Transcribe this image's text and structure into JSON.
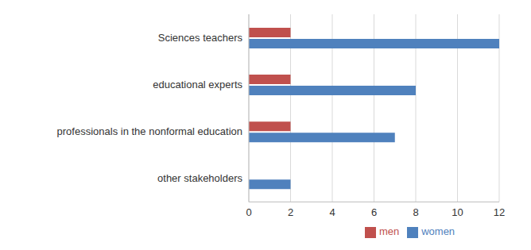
{
  "chart_data": {
    "type": "bar",
    "orientation": "horizontal",
    "categories": [
      "Sciences teachers",
      "educational experts",
      "professionals in the nonformal education",
      "other stakeholders"
    ],
    "series": [
      {
        "name": "men",
        "color": "#c0504d",
        "values": [
          2,
          2,
          2,
          0
        ]
      },
      {
        "name": "women",
        "color": "#4f81bd",
        "values": [
          12,
          8,
          7,
          2
        ]
      }
    ],
    "xlim": [
      0,
      12
    ],
    "xticks": [
      0,
      2,
      4,
      6,
      8,
      10,
      12
    ],
    "grid": true,
    "legend": "bottom"
  }
}
